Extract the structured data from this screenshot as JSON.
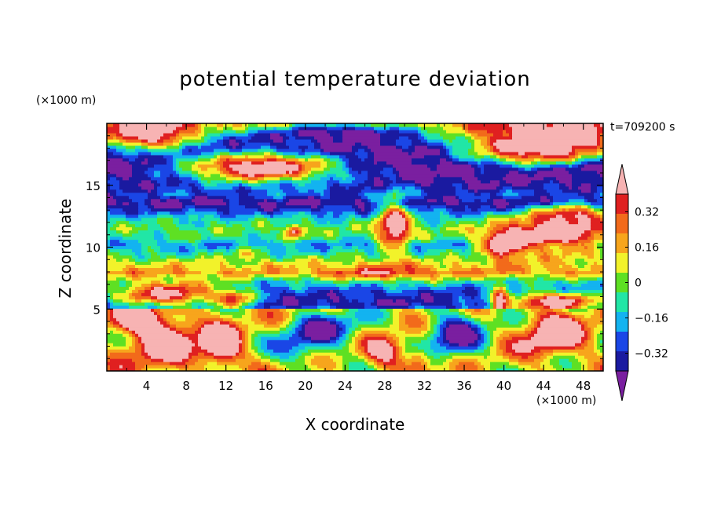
{
  "chart_data": {
    "type": "heatmap",
    "title": "potential temperature deviation",
    "xlabel": "X coordinate",
    "ylabel": "Z coordinate",
    "x_unit": "(×1000 m)",
    "y_unit": "(×1000 m)",
    "time_label": "t=709200 s",
    "xlim": [
      0,
      50
    ],
    "ylim": [
      0,
      20
    ],
    "x_ticks": [
      "4",
      "8",
      "12",
      "16",
      "20",
      "24",
      "28",
      "32",
      "36",
      "40",
      "44",
      "48"
    ],
    "x_tick_values": [
      4,
      8,
      12,
      16,
      20,
      24,
      28,
      32,
      36,
      40,
      44,
      48
    ],
    "y_ticks": [
      "5",
      "10",
      "15"
    ],
    "y_tick_values": [
      5,
      10,
      15
    ],
    "colorbar": {
      "labels": [
        "0.32",
        "0.16",
        "0",
        "−0.16",
        "−0.32"
      ],
      "label_values": [
        0.32,
        0.16,
        0,
        -0.16,
        -0.32
      ],
      "levels": [
        -0.4,
        -0.32,
        -0.24,
        -0.16,
        -0.08,
        0,
        0.08,
        0.16,
        0.24,
        0.32,
        0.4
      ],
      "colors": [
        "#7a1fa0",
        "#1a1aa0",
        "#1a46e6",
        "#13b3f0",
        "#21e6a6",
        "#5ee023",
        "#f2f22a",
        "#f7a51c",
        "#f26a1b",
        "#e02020",
        "#f7b3b3"
      ]
    },
    "bands": [
      {
        "z_range": [
          0,
          5
        ],
        "pattern": "mixed warm and cold cells, strongly positive at x 0-15 and x 40-50"
      },
      {
        "z_range": [
          5,
          7
        ],
        "pattern": "cold (< -0.32), with warm patches near x 0-13 and x 38-50"
      },
      {
        "z_range": [
          7,
          9
        ],
        "pattern": "near zero to weakly positive (0 to 0.16)"
      },
      {
        "z_range": [
          9,
          11
        ],
        "pattern": "alternating -0.16 to 0"
      },
      {
        "z_range": [
          11,
          13
        ],
        "pattern": "around -0.16 to 0 with warm plume x 27-31"
      },
      {
        "z_range": [
          13,
          14.5
        ],
        "pattern": "cold (-0.32 to -0.4)"
      },
      {
        "z_range": [
          14.5,
          18
        ],
        "pattern": "cold (< -0.4) with large warm (> 0.4) region x 6-25"
      },
      {
        "z_range": [
          18,
          20
        ],
        "pattern": "warm (> 0.4) near x 0-14 and x 34-50"
      }
    ]
  }
}
